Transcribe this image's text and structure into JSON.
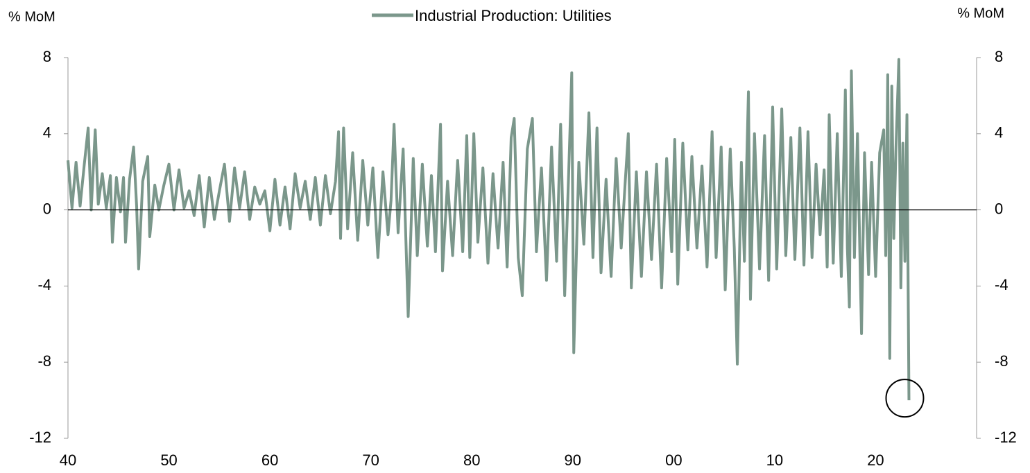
{
  "chart_data": {
    "type": "line",
    "y_axis_label": "% MoM",
    "y2_axis_label": "% MoM",
    "ylim": [
      -12,
      8
    ],
    "yticks": [
      -12,
      -8,
      -4,
      0,
      4,
      8
    ],
    "y2lim": [
      -12,
      8
    ],
    "y2ticks": [
      -12,
      -8,
      -4,
      0,
      4,
      8
    ],
    "xlim": [
      1940,
      2030
    ],
    "xticks": [
      {
        "value": 1940,
        "label": "40"
      },
      {
        "value": 1950,
        "label": "50"
      },
      {
        "value": 1960,
        "label": "60"
      },
      {
        "value": 1970,
        "label": "70"
      },
      {
        "value": 1980,
        "label": "80"
      },
      {
        "value": 1990,
        "label": "90"
      },
      {
        "value": 2000,
        "label": "00"
      },
      {
        "value": 2010,
        "label": "10"
      },
      {
        "value": 2020,
        "label": "20"
      }
    ],
    "x": [
      1940.0,
      1940.4,
      1940.8,
      1941.2,
      1941.6,
      1942.0,
      1942.3,
      1942.7,
      1943.0,
      1943.4,
      1943.8,
      1944.2,
      1944.4,
      1944.8,
      1945.2,
      1945.5,
      1945.7,
      1946.1,
      1946.5,
      1946.8,
      1947.0,
      1947.4,
      1947.9,
      1948.1,
      1948.6,
      1949.0,
      1949.5,
      1950.0,
      1950.5,
      1951.0,
      1951.5,
      1952.0,
      1952.5,
      1953.0,
      1953.5,
      1954.0,
      1954.5,
      1955.0,
      1955.5,
      1956.0,
      1956.5,
      1957.0,
      1957.5,
      1958.0,
      1958.5,
      1959.0,
      1959.5,
      1960.0,
      1960.5,
      1961.0,
      1961.5,
      1962.0,
      1962.5,
      1963.0,
      1963.5,
      1964.0,
      1964.5,
      1965.0,
      1965.5,
      1966.0,
      1966.5,
      1966.8,
      1967.0,
      1967.3,
      1967.7,
      1968.2,
      1968.7,
      1969.2,
      1969.7,
      1970.2,
      1970.7,
      1971.2,
      1971.7,
      1972.0,
      1972.3,
      1972.7,
      1973.2,
      1973.7,
      1974.2,
      1974.6,
      1975.1,
      1975.6,
      1976.0,
      1976.4,
      1976.9,
      1977.1,
      1977.6,
      1978.1,
      1978.6,
      1979.1,
      1979.5,
      1979.8,
      1980.2,
      1980.6,
      1981.1,
      1981.6,
      1982.1,
      1982.6,
      1983.1,
      1983.5,
      1983.9,
      1984.2,
      1984.6,
      1985.0,
      1985.5,
      1986.0,
      1986.4,
      1986.9,
      1987.4,
      1987.9,
      1988.4,
      1988.8,
      1989.2,
      1989.6,
      1989.9,
      1990.1,
      1990.6,
      1991.1,
      1991.6,
      1992.0,
      1992.4,
      1992.8,
      1993.3,
      1993.8,
      1994.3,
      1994.8,
      1995.2,
      1995.5,
      1995.8,
      1996.3,
      1996.8,
      1997.3,
      1997.8,
      1998.3,
      1998.8,
      1999.3,
      1999.8,
      2000.1,
      2000.4,
      2000.9,
      2001.4,
      2001.8,
      2002.3,
      2002.8,
      2003.3,
      2003.8,
      2004.2,
      2004.7,
      2005.1,
      2005.6,
      2006.0,
      2006.3,
      2006.7,
      2007.0,
      2007.4,
      2007.6,
      2008.0,
      2008.5,
      2009.0,
      2009.4,
      2009.8,
      2010.2,
      2010.7,
      2011.1,
      2011.6,
      2012.0,
      2012.5,
      2012.9,
      2013.3,
      2013.7,
      2014.1,
      2014.5,
      2014.9,
      2015.2,
      2015.4,
      2015.8,
      2016.2,
      2016.6,
      2017.0,
      2017.2,
      2017.4,
      2017.6,
      2017.9,
      2018.2,
      2018.6,
      2018.9,
      2019.3,
      2019.6,
      2020.0,
      2020.4,
      2020.8,
      2021.0,
      2021.2,
      2021.4,
      2021.6,
      2021.8,
      2022.0,
      2022.3,
      2022.5,
      2022.7,
      2022.9,
      2023.1,
      2023.3
    ],
    "series": [
      {
        "name": "Industrial Production: Utilities",
        "color": "#7b978b",
        "values": [
          2.6,
          0.1,
          2.5,
          0.2,
          2.3,
          4.3,
          0.0,
          4.2,
          0.3,
          1.9,
          0.1,
          1.8,
          -1.7,
          1.7,
          -0.1,
          1.7,
          -1.7,
          1.6,
          3.3,
          0.2,
          -3.1,
          1.5,
          2.8,
          -1.4,
          1.3,
          0.0,
          1.3,
          2.4,
          0.0,
          2.1,
          0.1,
          1.0,
          -0.3,
          1.8,
          -0.9,
          1.7,
          -0.5,
          1.0,
          2.4,
          -0.6,
          2.2,
          0.1,
          2.0,
          -0.5,
          1.2,
          0.3,
          1.0,
          -1.1,
          1.6,
          -0.8,
          1.2,
          -1.0,
          1.9,
          0.1,
          1.5,
          -0.5,
          1.7,
          -0.8,
          1.8,
          -0.2,
          1.5,
          4.1,
          -1.5,
          4.3,
          -1.0,
          3.0,
          -1.6,
          2.6,
          -0.8,
          2.2,
          -2.5,
          2.0,
          -1.3,
          0.5,
          4.5,
          -1.2,
          3.2,
          -5.6,
          2.7,
          -2.4,
          2.4,
          -1.9,
          1.8,
          -2.2,
          4.5,
          -3.2,
          1.5,
          -2.4,
          2.6,
          -2.2,
          3.9,
          -2.5,
          4.0,
          -1.7,
          2.2,
          -2.8,
          1.9,
          -2.0,
          2.5,
          -3.0,
          3.8,
          4.8,
          -2.5,
          -4.5,
          3.2,
          4.8,
          -2.2,
          2.2,
          -3.7,
          3.3,
          -2.7,
          4.5,
          -4.5,
          2.0,
          7.2,
          -7.5,
          2.5,
          -1.8,
          5.1,
          -2.5,
          4.3,
          -3.3,
          1.6,
          -3.5,
          2.7,
          -2.0,
          1.5,
          4.0,
          -4.1,
          2.0,
          -3.5,
          2.0,
          -2.6,
          2.4,
          -4.1,
          2.7,
          -2.2,
          3.7,
          -3.9,
          3.5,
          -2.1,
          2.8,
          -2.0,
          2.3,
          -3.0,
          4.1,
          -2.5,
          3.3,
          -4.2,
          3.2,
          -2.0,
          -8.1,
          2.5,
          -2.7,
          6.2,
          -4.7,
          4.0,
          -3.1,
          3.9,
          -3.7,
          5.4,
          -3.1,
          5.3,
          -2.4,
          3.8,
          -2.6,
          4.3,
          -2.9,
          4.1,
          -2.5,
          2.4,
          -1.3,
          2.1,
          -3.0,
          5.0,
          -2.8,
          4.0,
          -3.5,
          6.3,
          -2.0,
          -5.1,
          7.3,
          -2.5,
          4.0,
          -6.5,
          3.0,
          -3.4,
          2.5,
          -3.5,
          3.0,
          4.2,
          -2.4,
          7.1,
          -7.8,
          6.5,
          -1.5,
          3.0,
          7.9,
          -4.1,
          3.5,
          -2.7,
          5.0,
          -10.0
        ]
      }
    ]
  }
}
